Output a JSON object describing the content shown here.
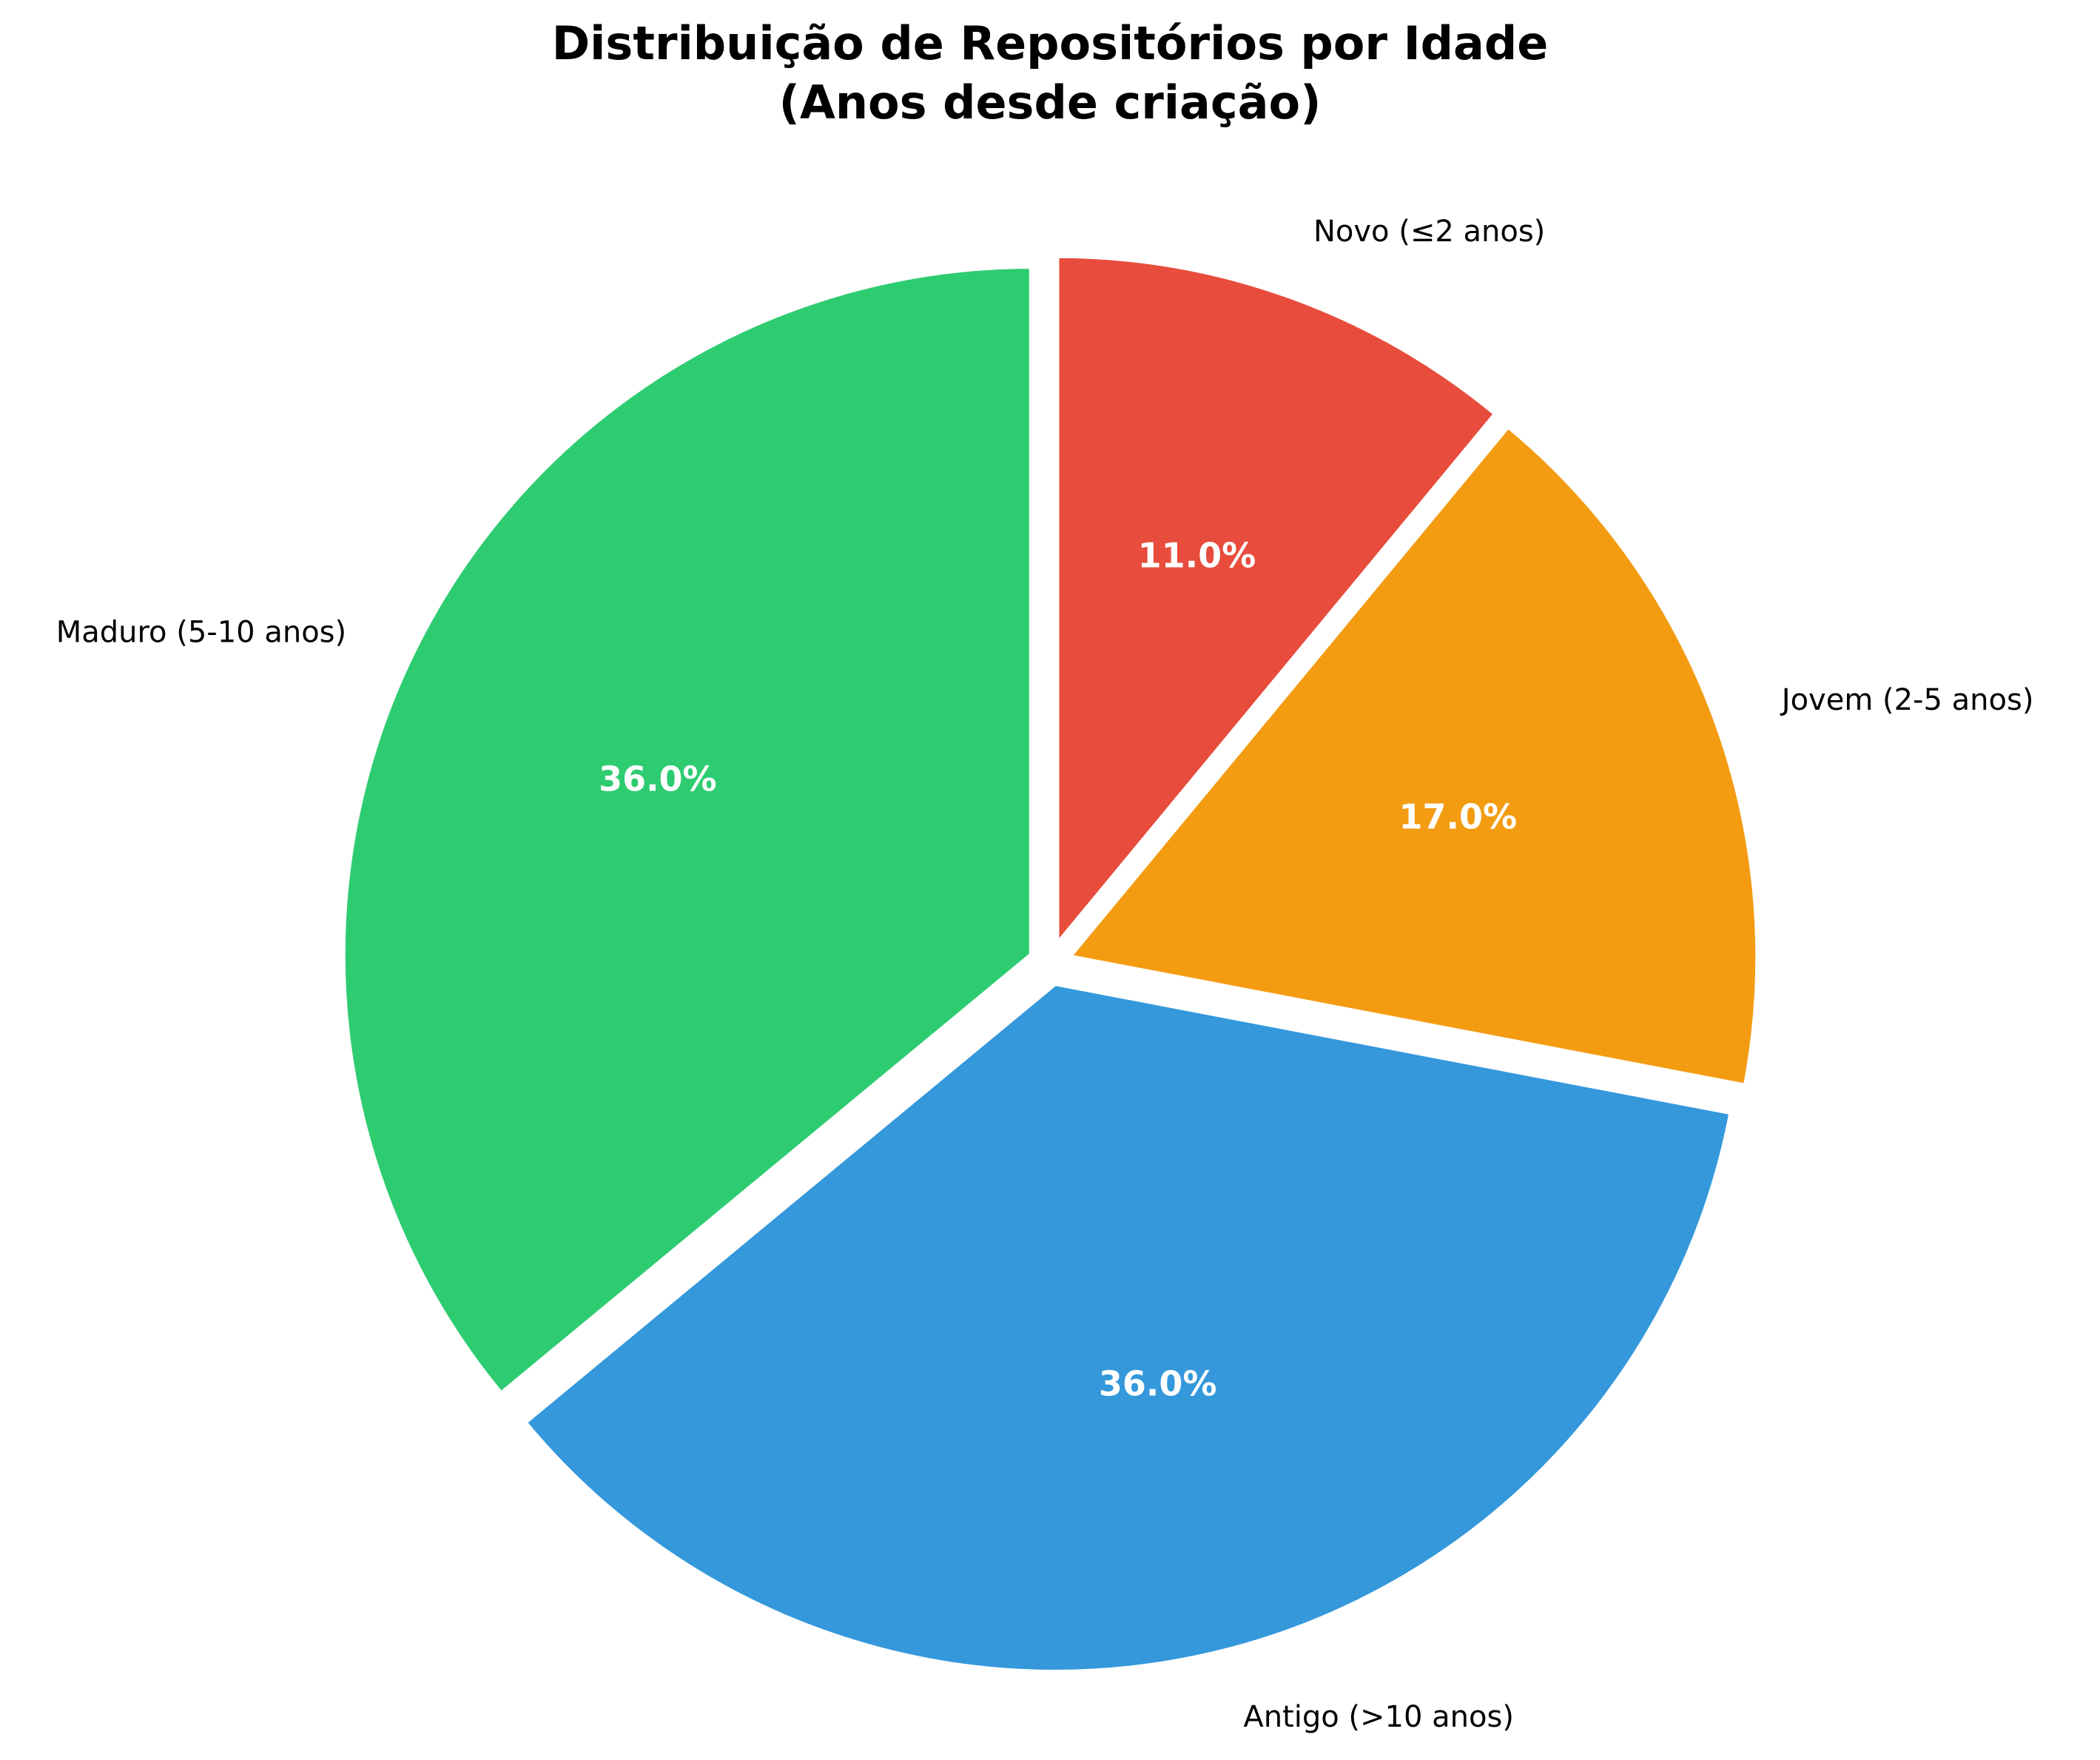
{
  "chart_data": {
    "type": "pie",
    "title_lines": [
      "Distribuição de Repositórios por Idade",
      "(Anos desde criação)"
    ],
    "start_angle_deg": 90,
    "direction": "counterclockwise",
    "slices": [
      {
        "label": "Maduro (5-10 anos)",
        "value": 36.0,
        "pct_label": "36.0%",
        "color": "#2ecc71",
        "explode": 0.03
      },
      {
        "label": "Antigo (>10 anos)",
        "value": 36.0,
        "pct_label": "36.0%",
        "color": "#3498db",
        "explode": 0.03
      },
      {
        "label": "Jovem (2-5 anos)",
        "value": 17.0,
        "pct_label": "17.0%",
        "color": "#f39c12",
        "explode": 0.03
      },
      {
        "label": "Novo (≤2 anos)",
        "value": 11.0,
        "pct_label": "11.0%",
        "color": "#e74c3c",
        "explode": 0.03
      }
    ],
    "edge_color": "#ffffff"
  }
}
